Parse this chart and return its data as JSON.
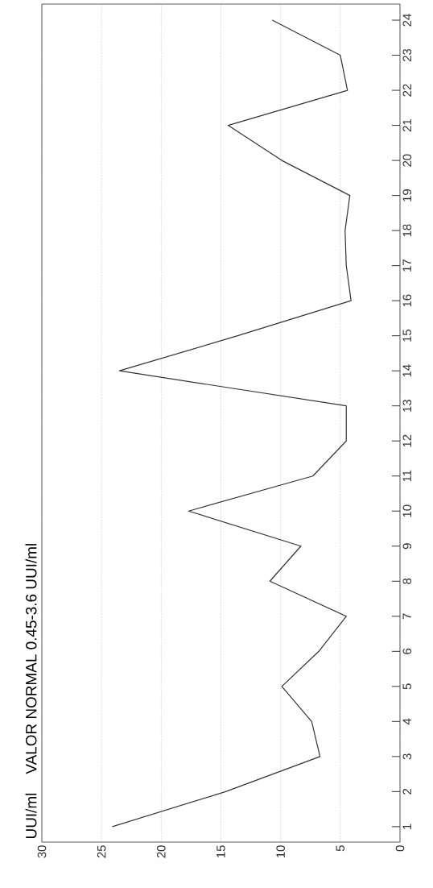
{
  "chart_data": {
    "type": "line",
    "orientation": "horizontal",
    "title": "VALOR NORMAL 0.45-3.6 UUI/ml",
    "ylabel": "UUI/ml",
    "categories": [
      "24",
      "23",
      "22",
      "21",
      "20",
      "19",
      "18",
      "17",
      "16",
      "15",
      "14",
      "13",
      "12",
      "11",
      "10",
      "9",
      "8",
      "7",
      "6",
      "5",
      "4",
      "3",
      "2",
      "1"
    ],
    "values": [
      10.7,
      5.0,
      4.4,
      14.4,
      9.9,
      4.2,
      4.6,
      4.5,
      4.1,
      13.6,
      23.5,
      4.5,
      4.5,
      7.3,
      17.7,
      8.3,
      10.9,
      4.5,
      6.8,
      9.9,
      7.4,
      6.7,
      14.6,
      24.1
    ],
    "color": "#333333",
    "xlim": [
      30,
      0
    ],
    "xticks": [
      30,
      25,
      20,
      15,
      10,
      5,
      0
    ],
    "grid": "x",
    "line_style": "solid",
    "marker": "none"
  }
}
